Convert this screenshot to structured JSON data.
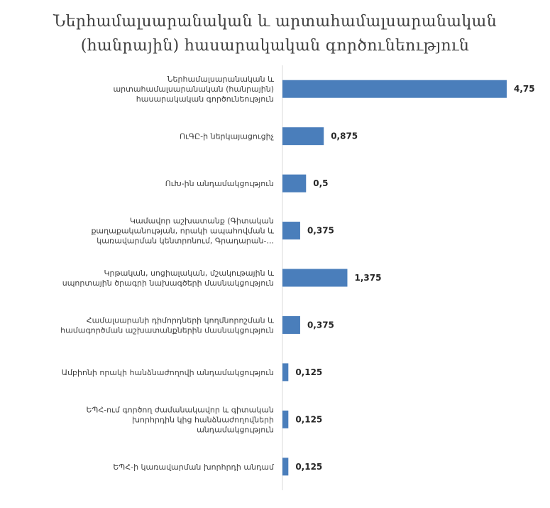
{
  "chart_data": {
    "type": "bar",
    "orientation": "horizontal",
    "title_lines": [
      "Ներհամալսարանական և արտահամալսարանական",
      "(հանրային) հասարակական գործունեություն"
    ],
    "categories": [
      [
        "Ներհամալսարանական և",
        "արտահամալսարանական (հանրային)",
        "հասարակական գործունեություն"
      ],
      [
        "ՈւԳԸ-ի ներկայացուցիչ"
      ],
      [
        "ՈւԽ-ին անդամակցություն"
      ],
      [
        "Կամավոր աշխատանք (Գիտական",
        "քաղաքականության, որակի ապահովման և",
        "կառավարման կենտրոնում, Գրադարան-..."
      ],
      [
        "Կրթական, սոցիալական, մշակութային և",
        "սպորտային ծրագրի նախագծերի մասնակցություն"
      ],
      [
        "Համալսարանի դիմորդների կողմնորոշման և",
        "համագործման աշխատանքներին մասնակցություն"
      ],
      [
        "Ամբիոնի որակի հանձնաժողովի անդամակցություն"
      ],
      [
        "ԵՊՀ-ում գործող ժամանակավոր և գիտական",
        "խորհրդին կից հանձնաժողովների",
        "անդամակցություն"
      ],
      [
        "ԵՊՀ-ի կառավարման խորհրդի անդամ"
      ]
    ],
    "values": [
      4.75,
      0.875,
      0.5,
      0.375,
      1.375,
      0.375,
      0.125,
      0.125,
      0.125
    ],
    "value_labels": [
      "4,75",
      "0,875",
      "0,5",
      "0,375",
      "1,375",
      "0,375",
      "0,125",
      "0,125",
      "0,125"
    ],
    "xlim": [
      0,
      4.75
    ],
    "grid": false,
    "legend": "none",
    "bar_color": "#4a7ebb"
  }
}
